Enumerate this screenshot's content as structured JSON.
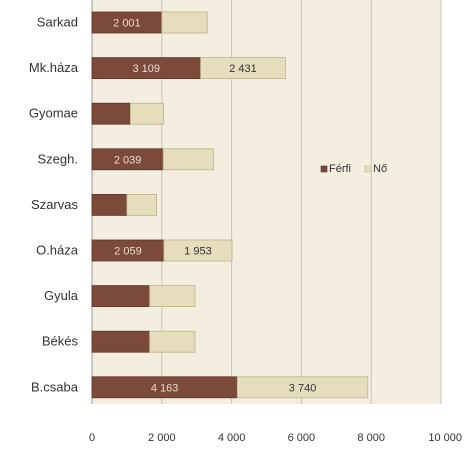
{
  "chart_data": {
    "type": "bar",
    "orientation": "horizontal",
    "stacked": true,
    "categories": [
      "Sarkad",
      "Mk.háza",
      "Gyomae",
      "Szegh.",
      "Szarvas",
      "O.háza",
      "Gyula",
      "Békés",
      "B.csaba"
    ],
    "series": [
      {
        "name": "Férfi",
        "color": "#7b4a3a",
        "values": [
          2001,
          3109,
          1100,
          2039,
          1000,
          2059,
          1650,
          1650,
          4163
        ],
        "labels": [
          "2 001",
          "3 109",
          "",
          "2 039",
          "",
          "2 059",
          "",
          "",
          "4 163"
        ]
      },
      {
        "name": "Nő",
        "color": "#e6ddbd",
        "values": [
          1300,
          2431,
          950,
          1450,
          850,
          1953,
          1300,
          1300,
          3740
        ],
        "labels": [
          "",
          "2 431",
          "",
          "",
          "",
          "1 953",
          "",
          "",
          "3 740"
        ]
      }
    ],
    "xlim": [
      0,
      10000
    ],
    "xticks": [
      0,
      2000,
      4000,
      6000,
      8000,
      10000
    ],
    "xtick_labels": [
      "0",
      "2 000",
      "4 000",
      "6 000",
      "8 000",
      "10 000"
    ],
    "grid": true,
    "plot_background": "#f3eedf",
    "legend_position": "right"
  }
}
